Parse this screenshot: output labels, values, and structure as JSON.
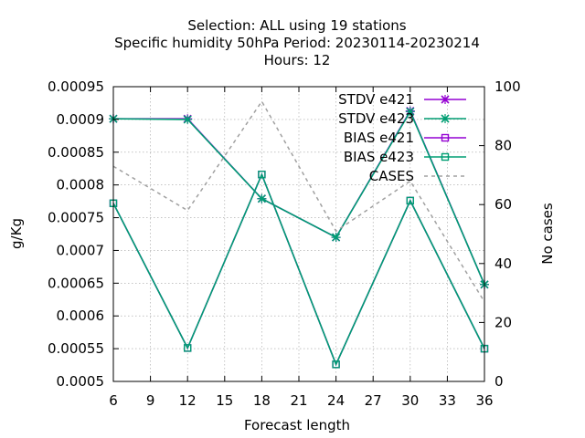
{
  "chart_data": {
    "type": "line",
    "title_lines": [
      "Selection: ALL using    19 stations",
      "Specific humidity 50hPa   Period: 20230114-20230214",
      "Hours:  12"
    ],
    "xlabel": "Forecast length",
    "ylabel": "g/Kg",
    "y2label": "No cases",
    "xlim": [
      6,
      36
    ],
    "ylim": [
      0.0005,
      0.00095
    ],
    "y2lim": [
      0,
      100
    ],
    "xticks": [
      6,
      9,
      12,
      15,
      18,
      21,
      24,
      27,
      30,
      33,
      36
    ],
    "yticks": [
      "0.0005",
      "0.00055",
      "0.0006",
      "0.00065",
      "0.0007",
      "0.00075",
      "0.0008",
      "0.00085",
      "0.0009",
      "0.00095"
    ],
    "y2ticks": [
      0,
      20,
      40,
      60,
      80,
      100
    ],
    "grid": true,
    "legend_position": "top-right",
    "x": [
      6,
      12,
      18,
      24,
      30,
      36
    ],
    "series": [
      {
        "name": "STDV e421",
        "axis": "y1",
        "color": "#9400d3",
        "marker": "x",
        "dash": false,
        "values": [
          0.000901,
          0.000901,
          0.000779,
          0.00072,
          0.000913,
          0.000648
        ]
      },
      {
        "name": "STDV e423",
        "axis": "y1",
        "color": "#009e73",
        "marker": "x",
        "dash": false,
        "values": [
          0.000901,
          0.0009,
          0.000779,
          0.00072,
          0.000912,
          0.000648
        ]
      },
      {
        "name": "BIAS e421",
        "axis": "y1",
        "color": "#9400d3",
        "marker": "square",
        "dash": false,
        "values": [
          0.000772,
          0.000551,
          0.000816,
          0.000526,
          0.000776,
          0.00055
        ]
      },
      {
        "name": "BIAS e423",
        "axis": "y1",
        "color": "#009e73",
        "marker": "square",
        "dash": false,
        "values": [
          0.000772,
          0.000551,
          0.000816,
          0.000526,
          0.000776,
          0.00055
        ]
      },
      {
        "name": "CASES",
        "axis": "y2",
        "color": "#a0a0a0",
        "marker": "none",
        "dash": true,
        "values": [
          73,
          58,
          95,
          51,
          68,
          27
        ]
      }
    ]
  }
}
